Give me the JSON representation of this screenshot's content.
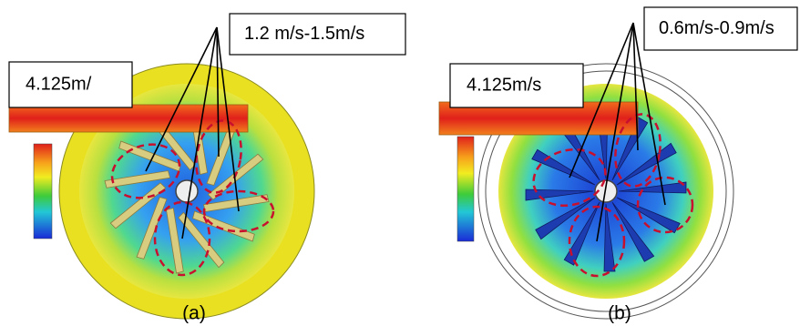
{
  "panels": [
    {
      "speed_range": "1.2 m/s-1.5m/s",
      "inlet_velocity": "4.125m/",
      "caption": "(a)"
    },
    {
      "speed_range": "0.6m/s-0.9m/s",
      "inlet_velocity": "4.125m/s",
      "caption": "(b)"
    }
  ]
}
